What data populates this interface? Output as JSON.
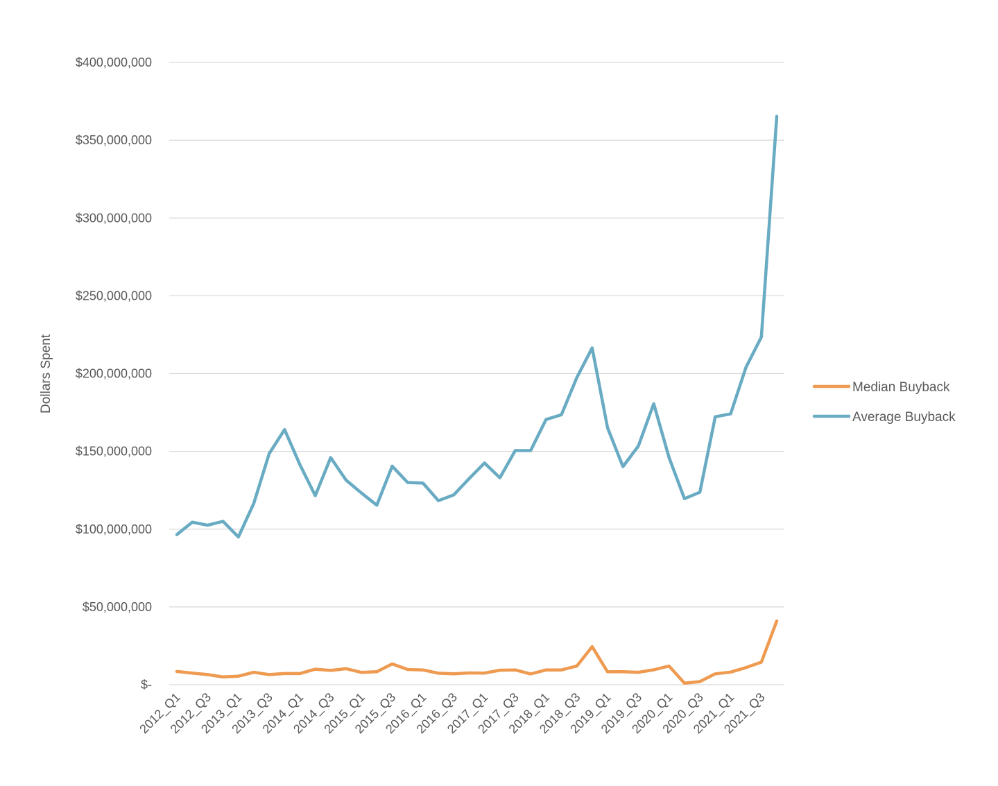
{
  "chart_data": {
    "type": "line",
    "title": "",
    "xlabel": "",
    "ylabel": "Dollars Spent",
    "ylim": [
      0,
      400000000
    ],
    "yticks": [
      0,
      50000000,
      100000000,
      150000000,
      200000000,
      250000000,
      300000000,
      350000000,
      400000000
    ],
    "ytick_labels": [
      "$-",
      "$50,000,000",
      "$100,000,000",
      "$150,000,000",
      "$200,000,000",
      "$250,000,000",
      "$300,000,000",
      "$350,000,000",
      "$400,000,000"
    ],
    "grid": true,
    "legend_position": "right",
    "categories": [
      "2012_Q1",
      "2012_Q2",
      "2012_Q3",
      "2012_Q4",
      "2013_Q1",
      "2013_Q2",
      "2013_Q3",
      "2013_Q4",
      "2014_Q1",
      "2014_Q2",
      "2014_Q3",
      "2014_Q4",
      "2015_Q1",
      "2015_Q2",
      "2015_Q3",
      "2015_Q4",
      "2016_Q1",
      "2016_Q2",
      "2016_Q3",
      "2016_Q4",
      "2017_Q1",
      "2017_Q2",
      "2017_Q3",
      "2017_Q4",
      "2018_Q1",
      "2018_Q2",
      "2018_Q3",
      "2018_Q4",
      "2019_Q1",
      "2019_Q2",
      "2019_Q3",
      "2019_Q4",
      "2020_Q1",
      "2020_Q2",
      "2020_Q3",
      "2020_Q4",
      "2021_Q1",
      "2021_Q2",
      "2021_Q3",
      "2021_Q4"
    ],
    "x_tick_labels": [
      "2012_Q1",
      "2012_Q3",
      "2013_Q1",
      "2013_Q3",
      "2014_Q1",
      "2014_Q3",
      "2015_Q1",
      "2015_Q3",
      "2016_Q1",
      "2016_Q3",
      "2017_Q1",
      "2017_Q3",
      "2018_Q1",
      "2018_Q3",
      "2019_Q1",
      "2019_Q3",
      "2020_Q1",
      "2020_Q3",
      "2021_Q1",
      "2021_Q3"
    ],
    "series": [
      {
        "name": "Median Buyback",
        "color": "#EE9A50",
        "values": [
          8500000,
          7500000,
          6500000,
          5000000,
          5500000,
          8000000,
          6500000,
          7200000,
          7200000,
          10000000,
          9200000,
          10300000,
          7900000,
          8400000,
          13400000,
          9800000,
          9500000,
          7400000,
          7000000,
          7600000,
          7500000,
          9300000,
          9500000,
          6900000,
          9500000,
          9500000,
          12000000,
          24500000,
          8300000,
          8400000,
          8000000,
          9600000,
          12000000,
          1000000,
          2000000,
          7000000,
          8100000,
          11000000,
          14500000,
          41000000
        ]
      },
      {
        "name": "Average Buyback",
        "color": "#68ABC3",
        "values": [
          96500000,
          104500000,
          102500000,
          105000000,
          95000000,
          116500000,
          148500000,
          164000000,
          141500000,
          121500000,
          146000000,
          131500000,
          123200000,
          115400000,
          140500000,
          130000000,
          129600000,
          118300000,
          122000000,
          132500000,
          142500000,
          133000000,
          150500000,
          150500000,
          170500000,
          173500000,
          197400000,
          216500000,
          165200000,
          140200000,
          153400000,
          180600000,
          146000000,
          119600000,
          123700000,
          172200000,
          174100000,
          204000000,
          223500000,
          365300000
        ]
      }
    ]
  }
}
